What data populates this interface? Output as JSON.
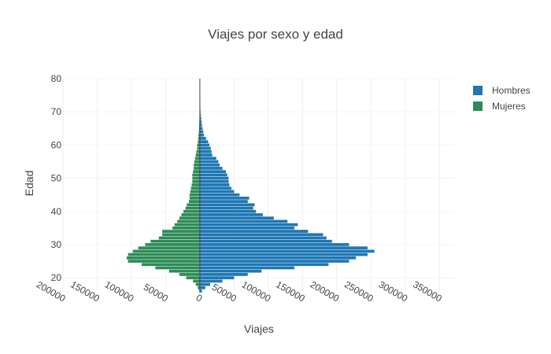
{
  "chart_data": {
    "type": "bar",
    "orientation": "horizontal",
    "title": "Viajes por sexo y edad",
    "xlabel": "Viajes",
    "ylabel": "Edad",
    "xlim": [
      -200000,
      375000
    ],
    "ylim": [
      16,
      80
    ],
    "x_ticks": [
      {
        "value": -200000,
        "label": "200000"
      },
      {
        "value": -150000,
        "label": "150000"
      },
      {
        "value": -100000,
        "label": "100000"
      },
      {
        "value": -50000,
        "label": "50000"
      },
      {
        "value": 0,
        "label": "0"
      },
      {
        "value": 50000,
        "label": "50000"
      },
      {
        "value": 100000,
        "label": "100000"
      },
      {
        "value": 150000,
        "label": "150000"
      },
      {
        "value": 200000,
        "label": "200000"
      },
      {
        "value": 250000,
        "label": "250000"
      },
      {
        "value": 300000,
        "label": "300000"
      },
      {
        "value": 350000,
        "label": "350000"
      }
    ],
    "y_ticks": [
      20,
      30,
      40,
      50,
      60,
      70,
      80
    ],
    "grid": true,
    "legend_position": "top-right",
    "ages": [
      16,
      17,
      18,
      19,
      20,
      21,
      22,
      23,
      24,
      25,
      26,
      27,
      28,
      29,
      30,
      31,
      32,
      33,
      34,
      35,
      36,
      37,
      38,
      39,
      40,
      41,
      42,
      43,
      44,
      45,
      46,
      47,
      48,
      49,
      50,
      51,
      52,
      53,
      54,
      55,
      56,
      57,
      58,
      59,
      60,
      61,
      62,
      63,
      64,
      65,
      66,
      67,
      68,
      69,
      70,
      71,
      72,
      73,
      74,
      75,
      76,
      77,
      78,
      79,
      80
    ],
    "series": [
      {
        "name": "Hombres",
        "color": "#1f77b4",
        "values": [
          3000,
          8000,
          15000,
          33000,
          50000,
          70000,
          90000,
          138000,
          188000,
          218000,
          228000,
          245000,
          255000,
          245000,
          218000,
          193000,
          185000,
          180000,
          158000,
          138000,
          143000,
          128000,
          108000,
          92000,
          82000,
          78000,
          80000,
          70000,
          72000,
          58000,
          50000,
          46000,
          43000,
          42000,
          42000,
          40000,
          38000,
          33000,
          29000,
          27000,
          24000,
          18000,
          17000,
          16000,
          14000,
          12000,
          9000,
          6000,
          5000,
          4000,
          3000,
          2500,
          2000,
          1500,
          1000,
          700,
          500,
          400,
          300,
          200,
          100,
          100,
          50,
          50,
          0
        ]
      },
      {
        "name": "Mujeres",
        "color": "#2e8b57",
        "values": [
          -1000,
          -3000,
          -6000,
          -10000,
          -20000,
          -30000,
          -45000,
          -65000,
          -85000,
          -105000,
          -107000,
          -105000,
          -98000,
          -90000,
          -80000,
          -72000,
          -60000,
          -55000,
          -55000,
          -40000,
          -37000,
          -33000,
          -30000,
          -27000,
          -24000,
          -21000,
          -19000,
          -16000,
          -15000,
          -15000,
          -14000,
          -13000,
          -12000,
          -11000,
          -11000,
          -11000,
          -10000,
          -9000,
          -9000,
          -8000,
          -7000,
          -6000,
          -5000,
          -4000,
          -4000,
          -3000,
          -2500,
          -2000,
          -1500,
          -1200,
          -1000,
          -800,
          -600,
          -500,
          -400,
          -300,
          -200,
          -150,
          -100,
          -80,
          -60,
          -40,
          -30,
          -20,
          0
        ]
      }
    ]
  }
}
